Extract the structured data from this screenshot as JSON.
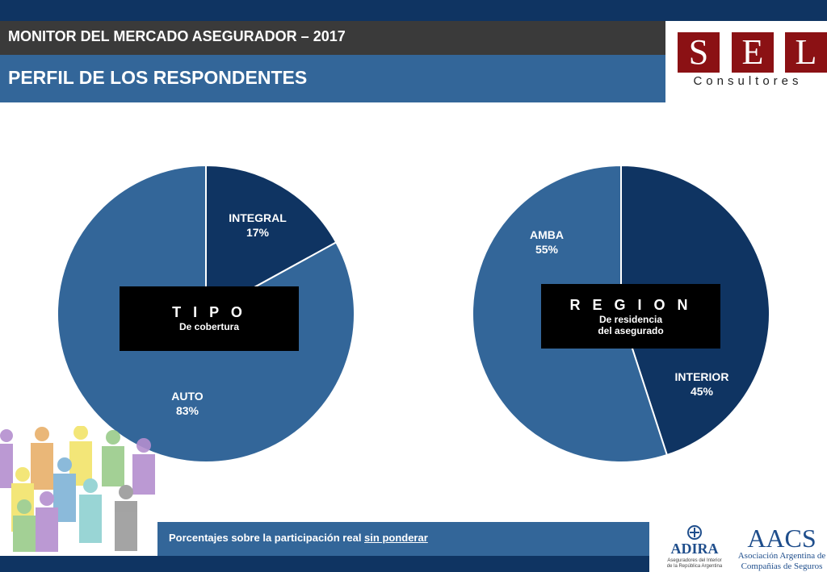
{
  "header": {
    "title": "MONITOR DEL MERCADO ASEGURADOR – 2017",
    "subtitle": "PERFIL DE LOS RESPONDENTES"
  },
  "logo": {
    "letters": [
      "S",
      "E",
      "L"
    ],
    "tagline": "Consultores",
    "color": "#8b1114"
  },
  "colors": {
    "dark_navy": "#0f3462",
    "mid_blue": "#336699",
    "header_gray": "#3a3a3a"
  },
  "chart_data": [
    {
      "type": "pie",
      "title": "T I P O",
      "subtitle": "De cobertura",
      "slices": [
        {
          "name": "INTEGRAL",
          "value": 17,
          "label": "17%",
          "color": "#0f3462"
        },
        {
          "name": "AUTO",
          "value": 83,
          "label": "83%",
          "color": "#336699"
        }
      ]
    },
    {
      "type": "pie",
      "title": "R E G I O N",
      "subtitle_lines": [
        "De residencia",
        "del asegurado"
      ],
      "slices": [
        {
          "name": "INTERIOR",
          "value": 45,
          "label": "45%",
          "color": "#0f3462"
        },
        {
          "name": "AMBA",
          "value": 55,
          "label": "55%",
          "color": "#336699"
        }
      ]
    }
  ],
  "footer": {
    "note_prefix": "Porcentajes sobre la participación real ",
    "note_underlined": "sin ponderar"
  },
  "partners": {
    "adira": {
      "name": "ADIRA",
      "line1": "Aseguradores del Interior",
      "line2": "de la República Argentina"
    },
    "aacs": {
      "name": "AACS",
      "line1": "Asociación Argentina de",
      "line2": "Compañías de Seguros"
    }
  }
}
